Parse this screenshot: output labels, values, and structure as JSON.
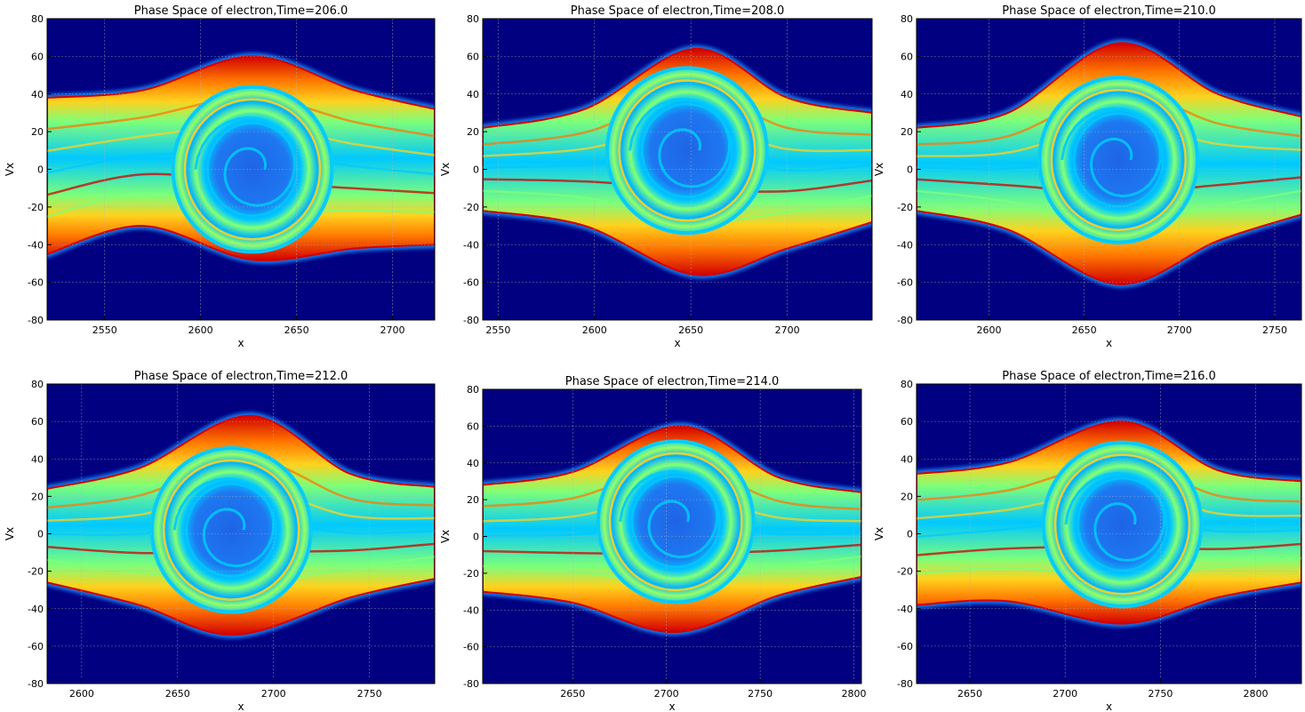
{
  "chart_data": [
    {
      "type": "heatmap",
      "title": "Phase Space of electron,Time=206.0",
      "xlabel": "x",
      "ylabel": "Vx",
      "xlim": [
        2520,
        2722
      ],
      "ylim": [
        -80,
        80
      ],
      "xticks": [
        "2550",
        "2600",
        "2650",
        "2700"
      ],
      "yticks": [
        "-80",
        "-60",
        "-40",
        "-20",
        "0",
        "20",
        "40",
        "60",
        "80"
      ],
      "grid": true,
      "vortex_center": [
        2627,
        0
      ],
      "band_upper": [
        [
          2520,
          38
        ],
        [
          2570,
          42
        ],
        [
          2627,
          60
        ],
        [
          2680,
          42
        ],
        [
          2722,
          32
        ]
      ],
      "band_lower": [
        [
          2520,
          -45
        ],
        [
          2570,
          -30
        ],
        [
          2627,
          -48
        ],
        [
          2680,
          -42
        ],
        [
          2722,
          -40
        ]
      ]
    },
    {
      "type": "heatmap",
      "title": "Phase Space of electron,Time=208.0",
      "xlabel": "x",
      "ylabel": "Vx",
      "xlim": [
        2542,
        2744
      ],
      "ylim": [
        -80,
        80
      ],
      "xticks": [
        "2550",
        "2600",
        "2650",
        "2700"
      ],
      "yticks": [
        "-80",
        "-60",
        "-40",
        "-20",
        "0",
        "20",
        "40",
        "60",
        "80"
      ],
      "grid": true,
      "vortex_center": [
        2648,
        10
      ],
      "band_upper": [
        [
          2542,
          22
        ],
        [
          2595,
          32
        ],
        [
          2652,
          64
        ],
        [
          2700,
          38
        ],
        [
          2744,
          30
        ]
      ],
      "band_lower": [
        [
          2542,
          -22
        ],
        [
          2595,
          -30
        ],
        [
          2652,
          -56
        ],
        [
          2700,
          -42
        ],
        [
          2744,
          -28
        ]
      ]
    },
    {
      "type": "heatmap",
      "title": "Phase Space of electron,Time=210.0",
      "xlabel": "x",
      "ylabel": "Vx",
      "xlim": [
        2562,
        2764
      ],
      "ylim": [
        -80,
        80
      ],
      "xticks": [
        "2600",
        "2650",
        "2700",
        "2750"
      ],
      "yticks": [
        "-80",
        "-60",
        "-40",
        "-20",
        "0",
        "20",
        "40",
        "60",
        "80"
      ],
      "grid": true,
      "vortex_center": [
        2668,
        5
      ],
      "band_upper": [
        [
          2562,
          22
        ],
        [
          2610,
          30
        ],
        [
          2668,
          67
        ],
        [
          2720,
          40
        ],
        [
          2764,
          28
        ]
      ],
      "band_lower": [
        [
          2562,
          -22
        ],
        [
          2610,
          -32
        ],
        [
          2668,
          -61
        ],
        [
          2720,
          -38
        ],
        [
          2764,
          -24
        ]
      ]
    },
    {
      "type": "heatmap",
      "title": "Phase Space of electron,Time=212.0",
      "xlabel": "x",
      "ylabel": "Vx",
      "xlim": [
        2582,
        2784
      ],
      "ylim": [
        -80,
        80
      ],
      "xticks": [
        "2600",
        "2650",
        "2700",
        "2750"
      ],
      "yticks": [
        "-80",
        "-60",
        "-40",
        "-20",
        "0",
        "20",
        "40",
        "60",
        "80"
      ],
      "grid": true,
      "vortex_center": [
        2678,
        2
      ],
      "band_upper": [
        [
          2582,
          24
        ],
        [
          2630,
          35
        ],
        [
          2688,
          63
        ],
        [
          2740,
          32
        ],
        [
          2784,
          25
        ]
      ],
      "band_lower": [
        [
          2582,
          -26
        ],
        [
          2630,
          -38
        ],
        [
          2680,
          -54
        ],
        [
          2740,
          -34
        ],
        [
          2784,
          -24
        ]
      ]
    },
    {
      "type": "heatmap",
      "title": "Phase Space of electron,Time=214.0",
      "xlabel": "x",
      "ylabel": "Vx",
      "xlim": [
        2602,
        2804
      ],
      "ylim": [
        -80,
        80
      ],
      "xticks": [
        "2650",
        "2700",
        "2750",
        "2800"
      ],
      "yticks": [
        "-80",
        "-60",
        "-40",
        "-20",
        "0",
        "20",
        "40",
        "60",
        "80"
      ],
      "grid": true,
      "vortex_center": [
        2705,
        8
      ],
      "band_upper": [
        [
          2602,
          28
        ],
        [
          2650,
          35
        ],
        [
          2708,
          60
        ],
        [
          2760,
          32
        ],
        [
          2804,
          24
        ]
      ],
      "band_lower": [
        [
          2602,
          -30
        ],
        [
          2650,
          -36
        ],
        [
          2705,
          -52
        ],
        [
          2760,
          -32
        ],
        [
          2804,
          -22
        ]
      ]
    },
    {
      "type": "heatmap",
      "title": "Phase Space of electron,Time=216.0",
      "xlabel": "x",
      "ylabel": "Vx",
      "xlim": [
        2622,
        2824
      ],
      "ylim": [
        -80,
        80
      ],
      "xticks": [
        "2650",
        "2700",
        "2750",
        "2800"
      ],
      "yticks": [
        "-80",
        "-60",
        "-40",
        "-20",
        "0",
        "20",
        "40",
        "60",
        "80"
      ],
      "grid": true,
      "vortex_center": [
        2730,
        5
      ],
      "band_upper": [
        [
          2622,
          32
        ],
        [
          2670,
          38
        ],
        [
          2730,
          60
        ],
        [
          2780,
          34
        ],
        [
          2824,
          28
        ]
      ],
      "band_lower": [
        [
          2622,
          -38
        ],
        [
          2670,
          -36
        ],
        [
          2730,
          -48
        ],
        [
          2780,
          -34
        ],
        [
          2824,
          -26
        ]
      ]
    }
  ],
  "colors": {
    "background": "#000080",
    "core": "#1e64e6",
    "ring_light": "#00c8ff",
    "ring_green": "#7dff7a",
    "band_yellow": "#ffd21e",
    "band_orange": "#ff7800",
    "band_red": "#d20000",
    "grid": "#b4b4b4"
  }
}
